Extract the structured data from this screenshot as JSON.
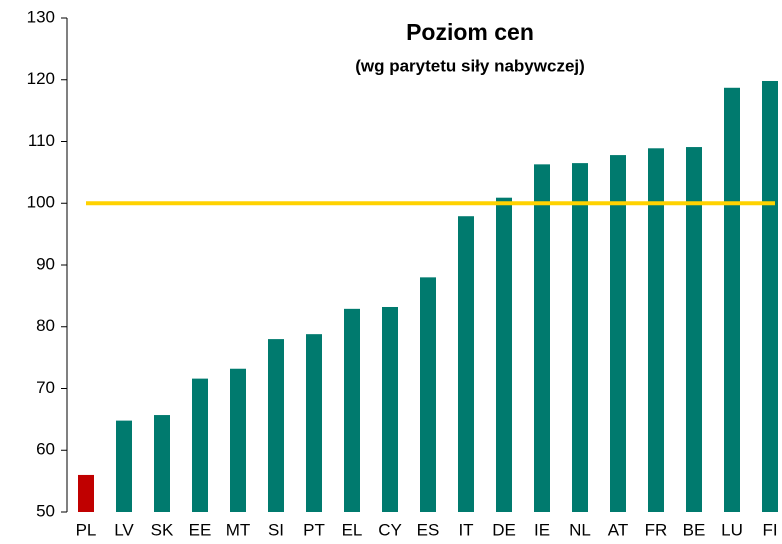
{
  "chart_data": {
    "type": "bar",
    "title": "Poziom cen",
    "subtitle": "(wg parytetu siły nabywczej)",
    "categories": [
      "PL",
      "LV",
      "SK",
      "EE",
      "MT",
      "SI",
      "PT",
      "EL",
      "CY",
      "ES",
      "IT",
      "DE",
      "IE",
      "NL",
      "AT",
      "FR",
      "BE",
      "LU",
      "FI"
    ],
    "values": [
      56,
      64.8,
      65.7,
      71.6,
      73.2,
      78,
      78.8,
      82.9,
      83.2,
      88,
      97.9,
      100.9,
      106.3,
      106.5,
      107.8,
      108.9,
      109.1,
      118.7,
      119.8
    ],
    "colors": [
      "#c00000",
      "#007a6e",
      "#007a6e",
      "#007a6e",
      "#007a6e",
      "#007a6e",
      "#007a6e",
      "#007a6e",
      "#007a6e",
      "#007a6e",
      "#007a6e",
      "#007a6e",
      "#007a6e",
      "#007a6e",
      "#007a6e",
      "#007a6e",
      "#007a6e",
      "#007a6e",
      "#007a6e"
    ],
    "reference_line": {
      "value": 100,
      "color": "#ffd200"
    },
    "ylim": [
      50,
      130
    ],
    "yticks": [
      50,
      60,
      70,
      80,
      90,
      100,
      110,
      120,
      130
    ],
    "grid": false
  }
}
